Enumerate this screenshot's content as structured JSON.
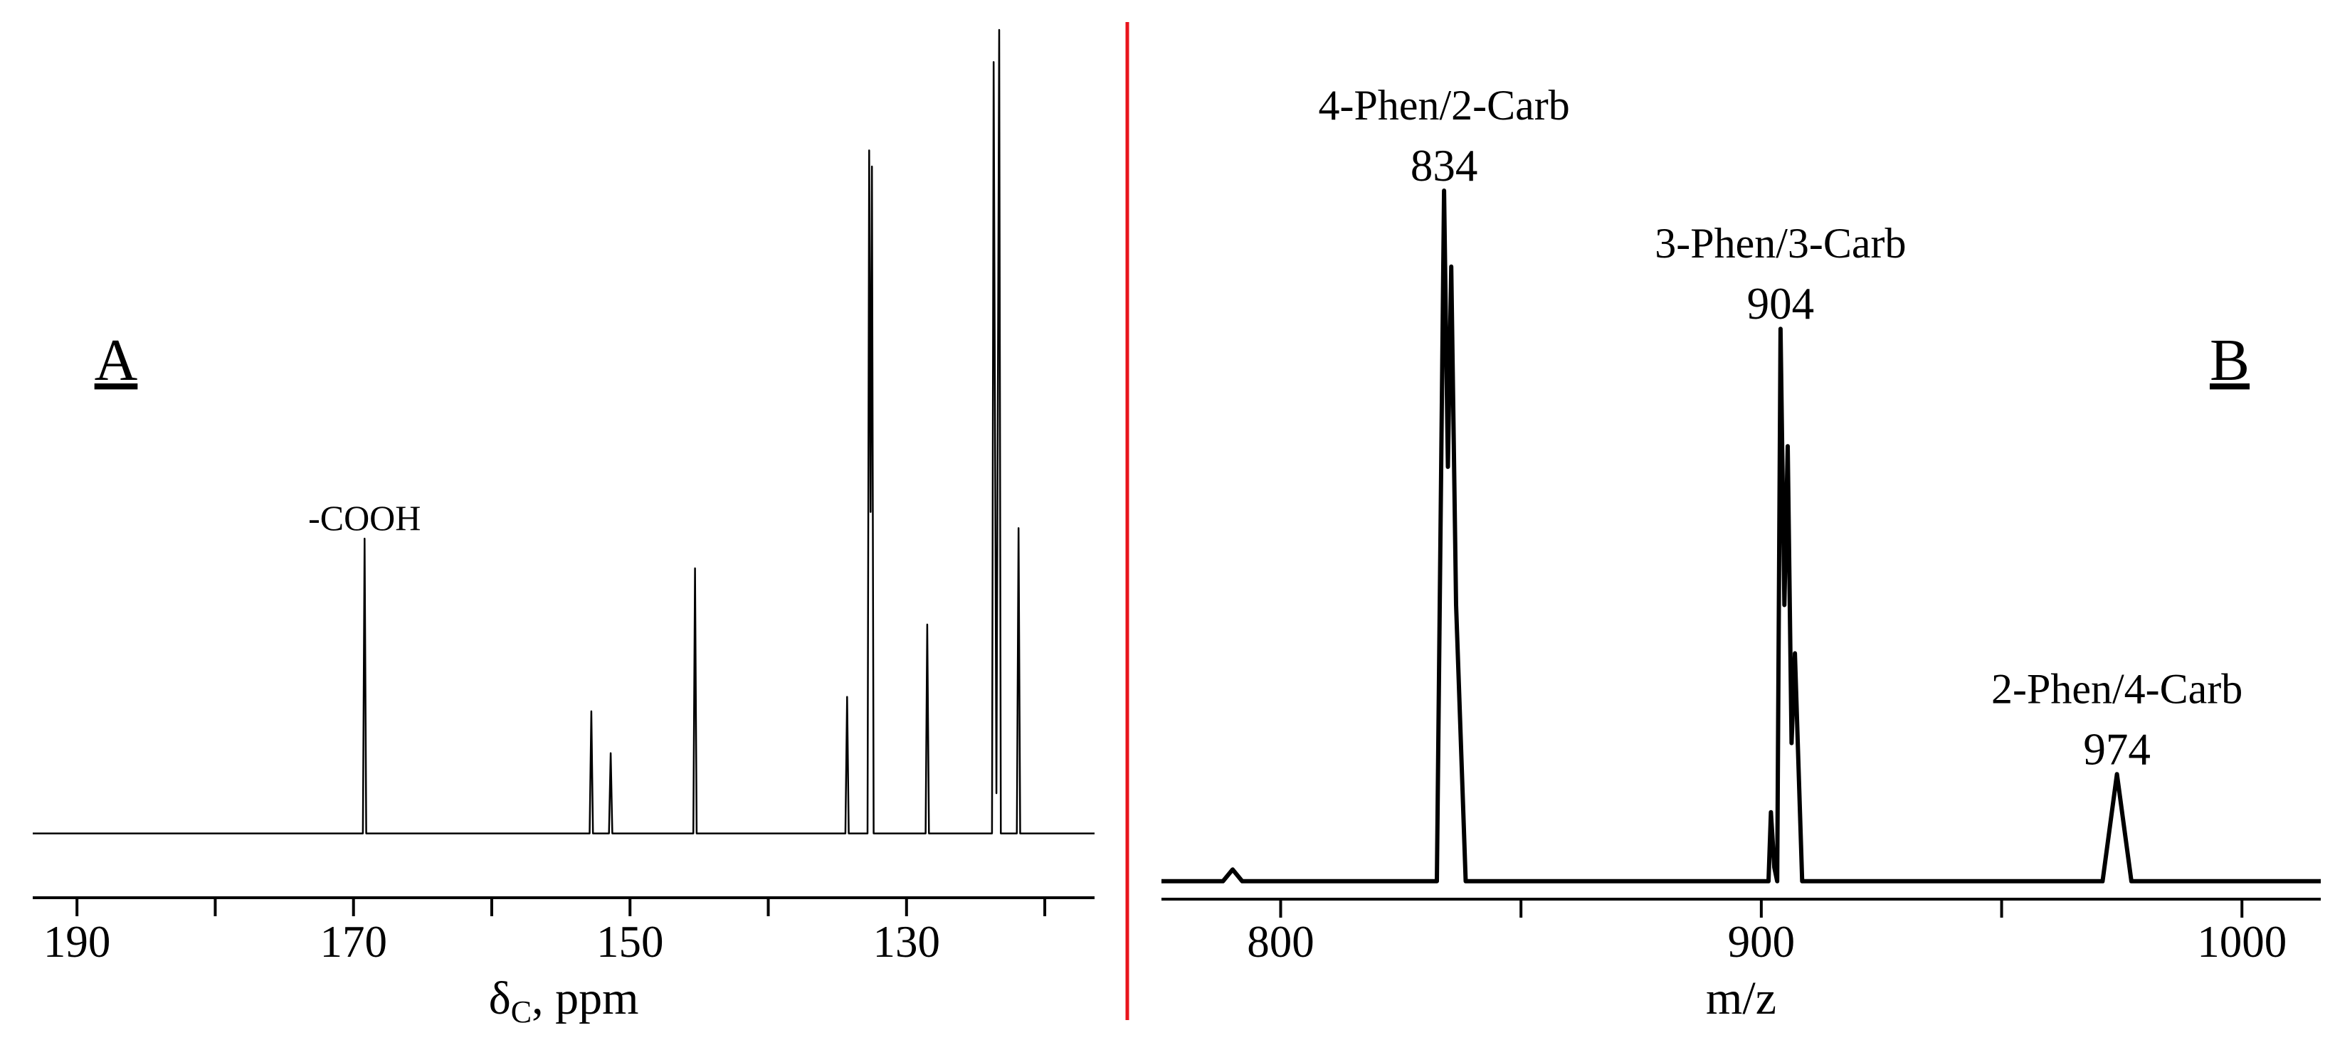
{
  "chart_data": [
    {
      "type": "line",
      "panel_label": "A",
      "xlabel": "δ",
      "xlabel_subscript": "C",
      "xlabel_suffix": ", ppm",
      "xlim": [
        193.2,
        116.4
      ],
      "ylim": [
        -8,
        100
      ],
      "xticks": [
        190,
        170,
        150,
        130
      ],
      "minor_xticks": [
        180,
        160,
        140,
        120
      ],
      "annotations": [
        {
          "x": 169.2,
          "text": "-COOH"
        }
      ],
      "series": [
        {
          "color": "#000000",
          "x": [
            193.2,
            169.32,
            169.2,
            169.08,
            152.92,
            152.8,
            152.68,
            151.52,
            151.4,
            151.28,
            145.42,
            145.3,
            145.18,
            134.42,
            134.3,
            134.18,
            132.82,
            132.7,
            132.6,
            132.5,
            132.38,
            128.62,
            128.5,
            128.38,
            123.82,
            123.7,
            123.5,
            123.3,
            123.18,
            122.02,
            121.9,
            121.78,
            116.4
          ],
          "values": [
            0,
            0,
            36.7,
            0,
            0,
            15.2,
            0,
            0,
            10,
            0,
            0,
            33,
            0,
            0,
            17,
            0,
            0,
            85,
            40,
            83,
            0,
            0,
            26,
            0,
            0,
            96,
            5,
            100,
            0,
            0,
            38,
            0,
            0
          ]
        }
      ]
    },
    {
      "type": "line",
      "panel_label": "B",
      "xlabel": "m/z",
      "xlim": [
        775.2,
        1016.4
      ],
      "ylim": [
        -2.6,
        100
      ],
      "xticks": [
        800,
        900,
        1000
      ],
      "minor_xticks": [
        850,
        950
      ],
      "annotations": [
        {
          "x": 834,
          "text": "4-Phen/2-Carb"
        },
        {
          "x": 904,
          "text": "3-Phen/3-Carb"
        },
        {
          "x": 974,
          "text": "2-Phen/4-Carb"
        }
      ],
      "series": [
        {
          "color": "#000000",
          "x": [
            775.2,
            788,
            790,
            792,
            832.5,
            834,
            834.8,
            835.5,
            836.5,
            837,
            838.5,
            901.5,
            902,
            902.7,
            903.3,
            904,
            904.8,
            905.5,
            906.3,
            907,
            908.5,
            971,
            974,
            977,
            1016.4
          ],
          "values": [
            0,
            0,
            1.7,
            0,
            0,
            100,
            60,
            89,
            40,
            30,
            0,
            0,
            10,
            2,
            0,
            80,
            40,
            63,
            20,
            33,
            0,
            0,
            15.5,
            0,
            0
          ]
        }
      ]
    }
  ]
}
